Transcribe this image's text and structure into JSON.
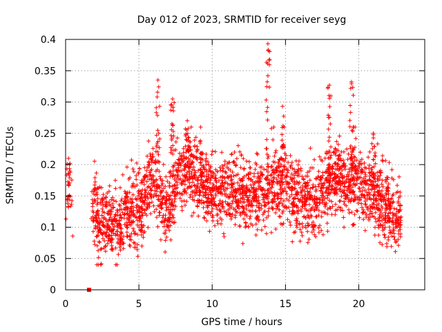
{
  "chart_data": {
    "type": "scatter",
    "title": "Day 012 of 2023, SRMTID for receiver seyg",
    "xlabel": "GPS time / hours",
    "ylabel": "SRMTID / TECUs",
    "xlim": [
      0,
      24.5
    ],
    "ylim": [
      0,
      0.4
    ],
    "x_ticks": [
      0,
      5,
      10,
      15,
      20
    ],
    "x_tick_labels": [
      "0",
      "5",
      "10",
      "15",
      "20"
    ],
    "y_ticks": [
      0,
      0.05,
      0.1,
      0.15,
      0.2,
      0.25,
      0.3,
      0.35,
      0.4
    ],
    "y_tick_labels": [
      "0",
      "0.05",
      "0.1",
      "0.15",
      "0.2",
      "0.25",
      "0.3",
      "0.35",
      "0.4"
    ],
    "grid": true,
    "marker": "plus",
    "color": "#ff0000",
    "profile": [
      [
        0.0,
        0.13
      ],
      [
        0.3,
        0.15
      ],
      [
        0.5,
        0.14
      ],
      [
        1.7,
        0.13
      ],
      [
        2.0,
        0.13
      ],
      [
        2.3,
        0.1
      ],
      [
        2.7,
        0.11
      ],
      [
        3.2,
        0.1
      ],
      [
        3.7,
        0.11
      ],
      [
        4.2,
        0.12
      ],
      [
        4.7,
        0.13
      ],
      [
        5.2,
        0.13
      ],
      [
        5.7,
        0.17
      ],
      [
        6.0,
        0.18
      ],
      [
        6.5,
        0.14
      ],
      [
        7.0,
        0.13
      ],
      [
        7.5,
        0.17
      ],
      [
        8.0,
        0.19
      ],
      [
        8.5,
        0.19
      ],
      [
        9.0,
        0.18
      ],
      [
        9.5,
        0.17
      ],
      [
        10.0,
        0.15
      ],
      [
        10.5,
        0.15
      ],
      [
        11.0,
        0.16
      ],
      [
        11.5,
        0.16
      ],
      [
        12.0,
        0.15
      ],
      [
        12.5,
        0.15
      ],
      [
        13.0,
        0.15
      ],
      [
        13.5,
        0.16
      ],
      [
        14.0,
        0.17
      ],
      [
        14.5,
        0.16
      ],
      [
        15.0,
        0.17
      ],
      [
        15.5,
        0.15
      ],
      [
        16.0,
        0.14
      ],
      [
        16.5,
        0.14
      ],
      [
        17.0,
        0.14
      ],
      [
        17.5,
        0.15
      ],
      [
        18.0,
        0.17
      ],
      [
        18.5,
        0.18
      ],
      [
        19.0,
        0.17
      ],
      [
        19.5,
        0.18
      ],
      [
        20.0,
        0.17
      ],
      [
        20.5,
        0.16
      ],
      [
        21.0,
        0.16
      ],
      [
        21.5,
        0.14
      ],
      [
        22.0,
        0.13
      ],
      [
        22.5,
        0.12
      ],
      [
        22.9,
        0.11
      ]
    ],
    "spikes": [
      {
        "x": 0.2,
        "y": 0.21
      },
      {
        "x": 6.3,
        "y": 0.335
      },
      {
        "x": 7.3,
        "y": 0.305
      },
      {
        "x": 8.3,
        "y": 0.27
      },
      {
        "x": 13.8,
        "y": 0.393
      },
      {
        "x": 14.8,
        "y": 0.293
      },
      {
        "x": 18.0,
        "y": 0.327
      },
      {
        "x": 19.5,
        "y": 0.332
      },
      {
        "x": 21.0,
        "y": 0.25
      }
    ],
    "isolated_points": [
      {
        "x": 1.6,
        "y": 0.0
      }
    ]
  }
}
